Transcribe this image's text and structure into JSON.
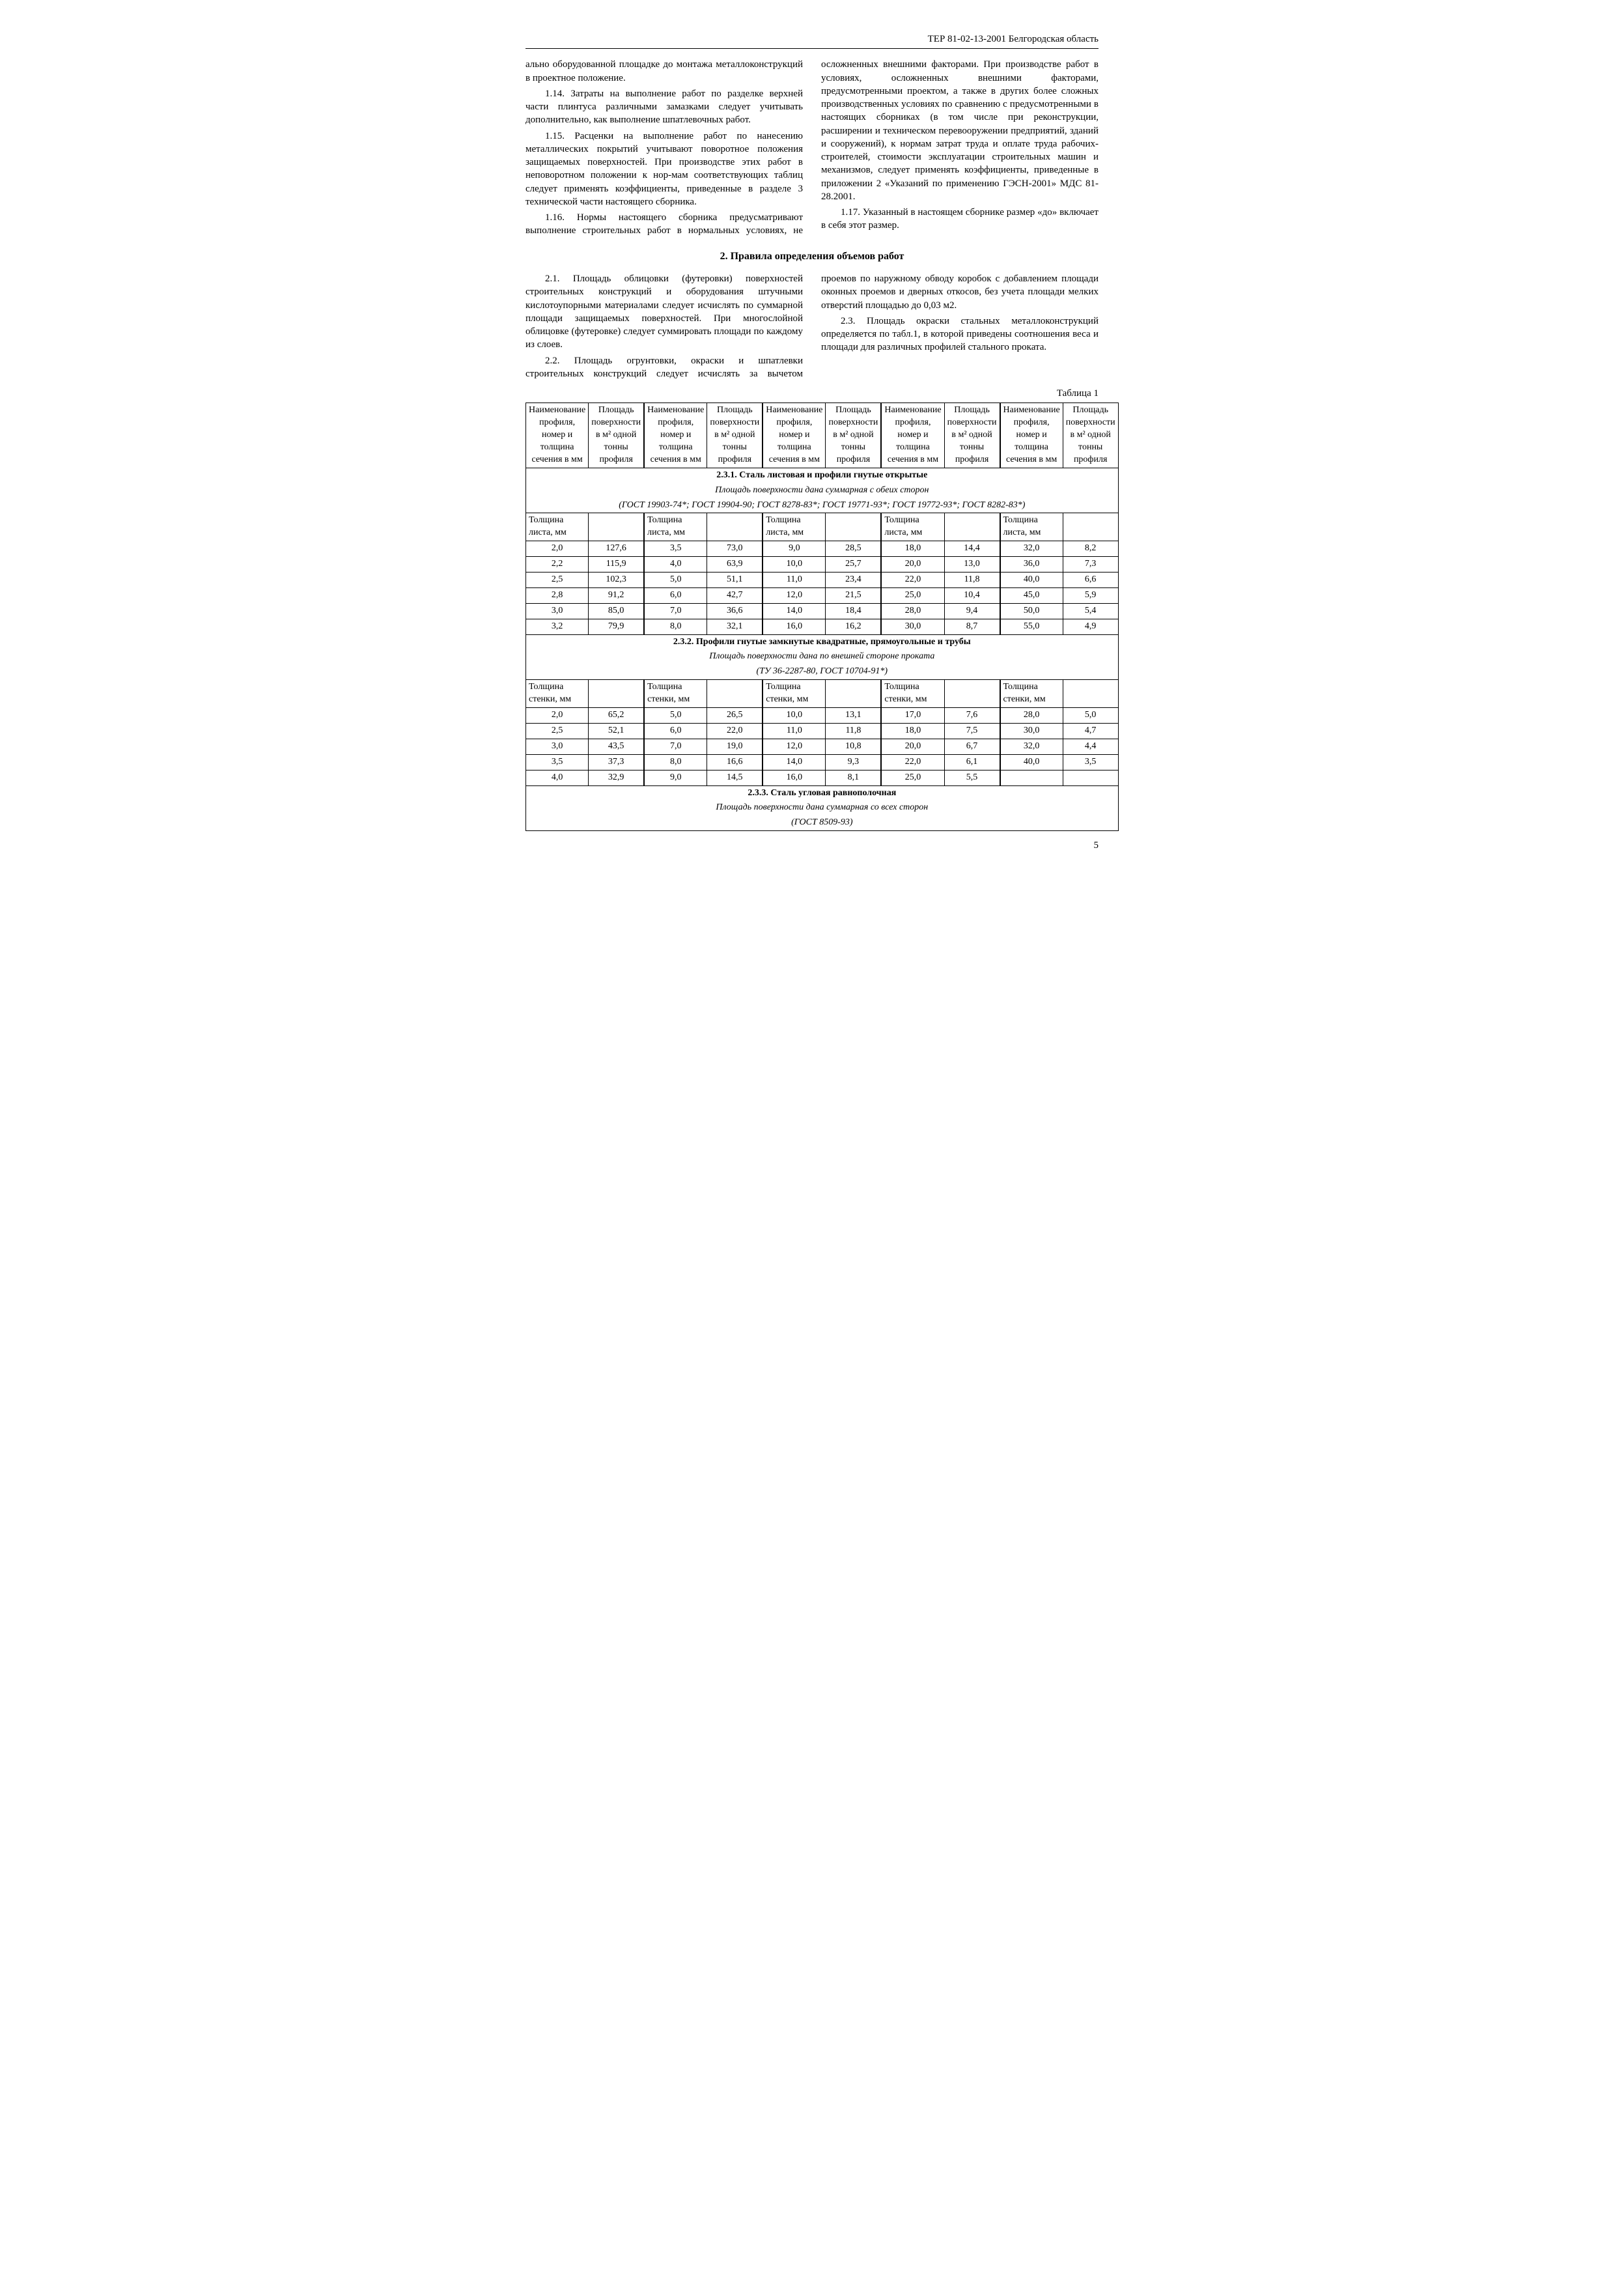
{
  "header": "ТЕР 81-02-13-2001 Белгородская область",
  "para1_14_pre": "ально оборудованной площадке до монтажа металлоконструкций в проектное положение.",
  "para1_14": "1.14. Затраты на выполнение работ по разделке верхней части плинтуса различными замазками следует учитывать дополнительно, как выполнение шпатлевочных работ.",
  "para1_15": "1.15. Расценки на выполнение работ по нанесению металлических покрытий учитывают поворотное положения защищаемых поверхностей. При производстве этих работ в неповоротном положении к нор-мам соответствующих таблиц следует применять коэффициенты, приведенные в разделе 3 технической части настоящего сборника.",
  "para1_16": "1.16. Нормы настоящего сборника предусматривают выполнение строительных работ в нормальных условиях, не осложненных внешними факторами. При производстве работ в условиях, осложненных внешними факторами, предусмотренными проектом, а также в других более сложных производственных условиях по сравнению с предусмотренными в настоящих сборниках (в том числе при реконструкции, расширении и техническом перевооружении предприятий, зданий и сооружений), к нормам затрат труда и оплате труда рабочих-строителей, стоимости эксплуатации строительных машин и механизмов, следует применять коэффициенты, приведенные в приложении 2 «Указаний по применению ГЭСН-2001» МДС 81-28.2001.",
  "para1_17": "1.17. Указанный в настоящем сборнике размер «до» включает в себя этот размер.",
  "section2_title": "2. Правила определения объемов работ",
  "para2_1": "2.1. Площадь облицовки (футеровки) поверхностей строительных конструкций и оборудования штучными кислотоупорными материалами следует исчислять по суммарной площади защищаемых поверхностей. При многослойной облицовке (футеровке) следует суммировать площади по каждому из слоев.",
  "para2_2": "2.2. Площадь огрунтовки, окраски и шпатлевки строительных конструкций следует исчислять за вычетом проемов по наружному обводу коробок с добавлением площади оконных проемов и дверных откосов, без учета площади мелких отверстий площадью до 0,03 м2.",
  "para2_3": "2.3. Площадь окраски стальных металлоконструкций определяется по табл.1, в которой приведены соотношения веса и площади для различных профилей стального проката.",
  "table_label": "Таблица 1",
  "col_headers": {
    "name": "Наименование профиля, номер и толщина сечения в мм",
    "area": "Площадь поверхности в м² одной тонны профиля",
    "name2": "Наименование профиля, номер и толщина сечения в мм",
    "area2": "Площадь поверхности в м² одной тонны профиля",
    "name3": "Наименование профиля, номер и толщина сечения в мм",
    "area3": "Площадь поверхности в м² одной тонны профиля",
    "name4": "Наименование профиля, номер и толщина сечения в мм",
    "area4": "Площадь поверхности в м² одной тонны профиля",
    "name5": "Наименование профиля, номер и толщина сечения в мм",
    "area5": "Площадь поверхности в м² одной тонны профиля"
  },
  "sec231": {
    "title": "2.3.1. Сталь листовая и профили гнутые открытые",
    "sub": "Площадь поверхности дана суммарная с обеих сторон",
    "gost": "(ГОСТ 19903-74*; ГОСТ 19904-90; ГОСТ 8278-83*; ГОСТ 19771-93*; ГОСТ 19772-93*; ГОСТ 8282-83*)",
    "rowhead": "Толщина листа, мм",
    "rows": [
      [
        "2,0",
        "127,6",
        "3,5",
        "73,0",
        "9,0",
        "28,5",
        "18,0",
        "14,4",
        "32,0",
        "8,2"
      ],
      [
        "2,2",
        "115,9",
        "4,0",
        "63,9",
        "10,0",
        "25,7",
        "20,0",
        "13,0",
        "36,0",
        "7,3"
      ],
      [
        "2,5",
        "102,3",
        "5,0",
        "51,1",
        "11,0",
        "23,4",
        "22,0",
        "11,8",
        "40,0",
        "6,6"
      ],
      [
        "2,8",
        "91,2",
        "6,0",
        "42,7",
        "12,0",
        "21,5",
        "25,0",
        "10,4",
        "45,0",
        "5,9"
      ],
      [
        "3,0",
        "85,0",
        "7,0",
        "36,6",
        "14,0",
        "18,4",
        "28,0",
        "9,4",
        "50,0",
        "5,4"
      ],
      [
        "3,2",
        "79,9",
        "8,0",
        "32,1",
        "16,0",
        "16,2",
        "30,0",
        "8,7",
        "55,0",
        "4,9"
      ]
    ]
  },
  "sec232": {
    "title": "2.3.2. Профили гнутые замкнутые квадратные, прямоугольные и трубы",
    "sub": "Площадь поверхности дана по внешней стороне проката",
    "gost": "(ТУ 36-2287-80, ГОСТ 10704-91*)",
    "rowhead": "Толщина стенки, мм",
    "rows": [
      [
        "2,0",
        "65,2",
        "5,0",
        "26,5",
        "10,0",
        "13,1",
        "17,0",
        "7,6",
        "28,0",
        "5,0"
      ],
      [
        "2,5",
        "52,1",
        "6,0",
        "22,0",
        "11,0",
        "11,8",
        "18,0",
        "7,5",
        "30,0",
        "4,7"
      ],
      [
        "3,0",
        "43,5",
        "7,0",
        "19,0",
        "12,0",
        "10,8",
        "20,0",
        "6,7",
        "32,0",
        "4,4"
      ],
      [
        "3,5",
        "37,3",
        "8,0",
        "16,6",
        "14,0",
        "9,3",
        "22,0",
        "6,1",
        "40,0",
        "3,5"
      ],
      [
        "4,0",
        "32,9",
        "9,0",
        "14,5",
        "16,0",
        "8,1",
        "25,0",
        "5,5",
        "",
        ""
      ]
    ]
  },
  "sec233": {
    "title": "2.3.3. Сталь угловая равнополочная",
    "sub": "Площадь поверхности дана суммарная со всех сторон",
    "gost": "(ГОСТ 8509-93)"
  },
  "pagenum": "5"
}
